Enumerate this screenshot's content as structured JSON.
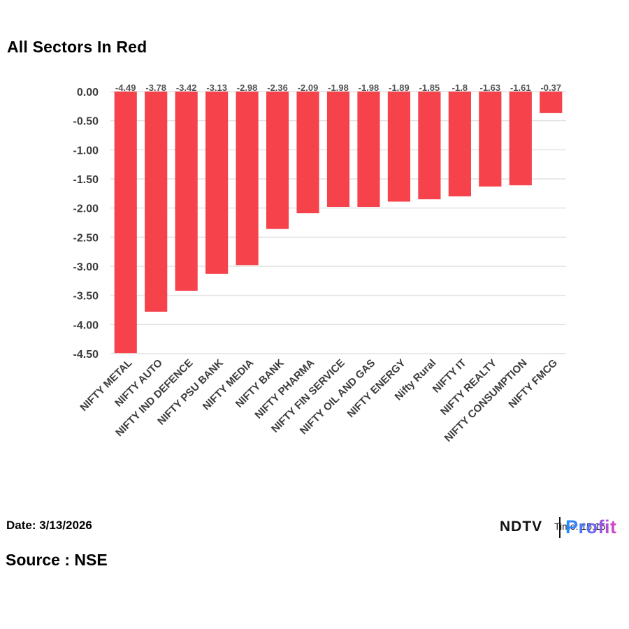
{
  "header": {
    "title": "All Sectors In Red"
  },
  "footer": {
    "date_label": "Date: 3/13/2026",
    "source_label": "Source : NSE",
    "time_label": "Time: 15:15",
    "logo_main": "NDTV",
    "logo_sub": "Profit"
  },
  "colors": {
    "bar": "#f5424b",
    "grid": "#e2e2e2",
    "axis_text": "#3c3c3c",
    "label_text": "#555555"
  },
  "chart_data": {
    "type": "bar",
    "title": "All Sectors In Red",
    "xlabel": "",
    "ylabel": "",
    "categories": [
      "NIFTY METAL",
      "NIFTY AUTO",
      "NIFTY IND DEFENCE",
      "NIFTY PSU BANK",
      "NIFTY MEDIA",
      "NIFTY BANK",
      "NIFTY PHARMA",
      "NIFTY FIN SERVICE",
      "NIFTY OIL AND GAS",
      "NIFTY ENERGY",
      "Nifty Rural",
      "NIFTY IT",
      "NIFTY REALTY",
      "NIFTY CONSUMPTION",
      "NIFTY FMCG"
    ],
    "values": [
      -4.49,
      -3.78,
      -3.42,
      -3.13,
      -2.98,
      -2.36,
      -2.09,
      -1.98,
      -1.98,
      -1.89,
      -1.85,
      -1.8,
      -1.63,
      -1.61,
      -0.37
    ],
    "data_labels": [
      "-4.49",
      "-3.78",
      "-3.42",
      "-3.13",
      "-2.98",
      "-2.36",
      "-2.09",
      "-1.98",
      "-1.98",
      "-1.89",
      "-1.85",
      "-1.8",
      "-1.63",
      "-1.61",
      "-0.37"
    ],
    "y_ticks": [
      0,
      -0.5,
      -1,
      -1.5,
      -2,
      -2.5,
      -3,
      -3.5,
      -4,
      -4.5
    ],
    "y_tick_labels": [
      "0.00",
      "-0.50",
      "-1.00",
      "-1.50",
      "-2.00",
      "-2.50",
      "-3.00",
      "-3.50",
      "-4.00",
      "-4.50"
    ],
    "ylim": [
      -4.5,
      0
    ],
    "grid": true,
    "legend": "none"
  }
}
